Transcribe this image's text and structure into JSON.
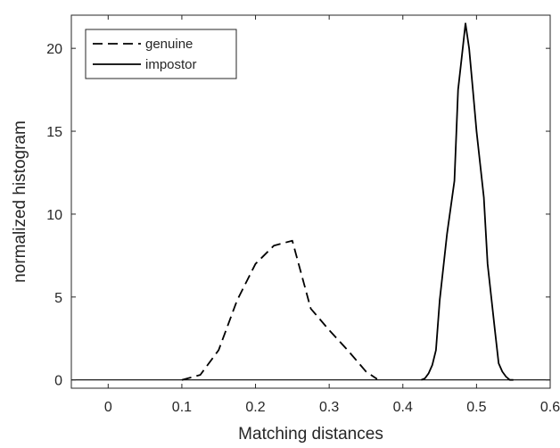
{
  "chart_data": {
    "type": "line",
    "xlabel": "Matching distances",
    "ylabel": "normalized histogram",
    "xlim": [
      -0.05,
      0.6
    ],
    "ylim": [
      -0.5,
      22
    ],
    "xticks": [
      0,
      0.1,
      0.2,
      0.3,
      0.4,
      0.5,
      0.6
    ],
    "xtick_labels": [
      "0",
      "0.1",
      "0.2",
      "0.3",
      "0.4",
      "0.5",
      "0.6"
    ],
    "yticks": [
      0,
      5,
      10,
      15,
      20
    ],
    "ytick_labels": [
      "0",
      "5",
      "10",
      "15",
      "20"
    ],
    "grid": false,
    "legend_position": "top-left",
    "baseline": {
      "x": [
        -0.05,
        0.6
      ],
      "y": [
        0,
        0
      ]
    },
    "series": [
      {
        "name": "genuine",
        "style": "dashed",
        "color": "#000000",
        "x": [
          0.1,
          0.125,
          0.15,
          0.175,
          0.2,
          0.225,
          0.25,
          0.275,
          0.3,
          0.325,
          0.35,
          0.365
        ],
        "y": [
          0.0,
          0.3,
          1.8,
          4.8,
          7.0,
          8.1,
          8.4,
          4.3,
          3.0,
          1.8,
          0.5,
          0.05
        ]
      },
      {
        "name": "impostor",
        "style": "solid",
        "color": "#000000",
        "x": [
          0.425,
          0.43,
          0.435,
          0.44,
          0.445,
          0.45,
          0.46,
          0.47,
          0.475,
          0.48,
          0.485,
          0.49,
          0.495,
          0.5,
          0.505,
          0.51,
          0.515,
          0.52,
          0.525,
          0.53,
          0.535,
          0.54,
          0.545,
          0.55
        ],
        "y": [
          0.0,
          0.1,
          0.4,
          0.9,
          1.8,
          4.8,
          8.8,
          12.0,
          17.5,
          19.5,
          21.5,
          20.0,
          17.5,
          15.0,
          13.0,
          11.0,
          7.0,
          5.0,
          3.0,
          1.0,
          0.5,
          0.2,
          0.0,
          0.0
        ]
      }
    ]
  }
}
